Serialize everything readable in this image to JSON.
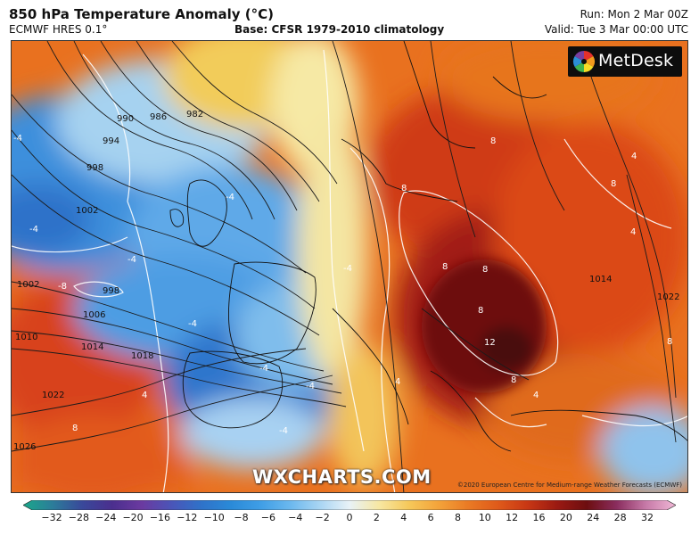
{
  "header": {
    "title": "850 hPa Temperature Anomaly (°C)",
    "model": "ECMWF HRES 0.1°",
    "base": "Base: CFSR 1979-2010 climatology",
    "run": "Run: Mon 2 Mar 00Z",
    "valid": "Valid: Tue 3 Mar 00:00 UTC"
  },
  "map": {
    "logo": "MetDesk",
    "watermark": "WXCHARTS.COM",
    "copyright": "©2020 European Centre for Medium-range Weather Forecasts (ECMWF)",
    "isobar_labels": [
      "990",
      "986",
      "982",
      "994",
      "998",
      "1002",
      "1002",
      "998",
      "1006",
      "1010",
      "1014",
      "1018",
      "1022",
      "1026",
      "1014",
      "1022"
    ],
    "anomaly_labels": [
      "-4",
      "-4",
      "-4",
      "-8",
      "-4",
      "-4",
      "-4",
      "-4",
      "-4",
      "-4",
      "4",
      "4",
      "4",
      "4",
      "8",
      "8",
      "8",
      "8",
      "8",
      "8",
      "12",
      "8",
      "8",
      "4",
      "8"
    ]
  },
  "colorbar": {
    "ticks": [
      "−32",
      "−28",
      "−24",
      "−20",
      "−16",
      "−12",
      "−10",
      "−8",
      "−6",
      "−4",
      "−2",
      "0",
      "2",
      "4",
      "6",
      "8",
      "10",
      "12",
      "16",
      "20",
      "24",
      "28",
      "32"
    ],
    "colors": [
      "#1aa88a",
      "#2c7c9a",
      "#39489a",
      "#4b2f8e",
      "#6b3aa0",
      "#4a55b8",
      "#2f72c9",
      "#2a8ad8",
      "#3f9ee6",
      "#6bb8ee",
      "#a9d5f3",
      "#e8f2f7",
      "#f7e7a2",
      "#f6c85a",
      "#f3a33a",
      "#ea7a24",
      "#df5a1a",
      "#c83714",
      "#9b1a12",
      "#6d0e10",
      "#8a2d5e",
      "#c77aa8",
      "#f0b8d6"
    ]
  }
}
